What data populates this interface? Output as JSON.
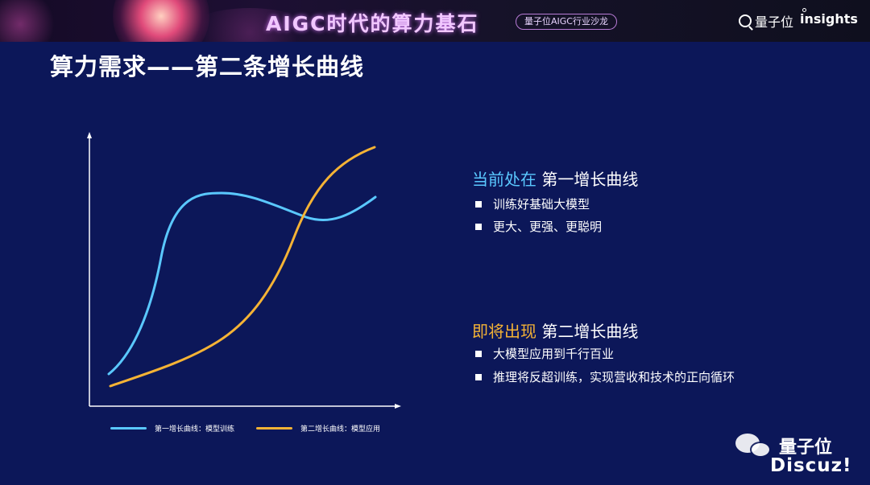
{
  "banner": {
    "title": "AIGC时代的算力基石",
    "badge": "量子位AIGC行业沙龙",
    "logo": "量子位",
    "insights": "insights"
  },
  "page_title": "算力需求——第二条增长曲线",
  "legend": {
    "curve1": "第一增长曲线：模型训练",
    "curve2": "第二增长曲线：模型应用"
  },
  "section1": {
    "highlight": "当前处在",
    "rest": " 第一增长曲线",
    "bullets": [
      "训练好基础大模型",
      "更大、更强、更聪明"
    ]
  },
  "section2": {
    "highlight": "即将出现",
    "rest": " 第二增长曲线",
    "bullets": [
      "大模型应用到千行百业",
      "推理将反超训练，实现营收和技术的正向循环"
    ]
  },
  "watermark": {
    "name": "量子位",
    "site": "Discuz!"
  },
  "colors": {
    "background": "#0c1759",
    "curve1": "#5ac8ff",
    "curve2": "#f5b335"
  }
}
